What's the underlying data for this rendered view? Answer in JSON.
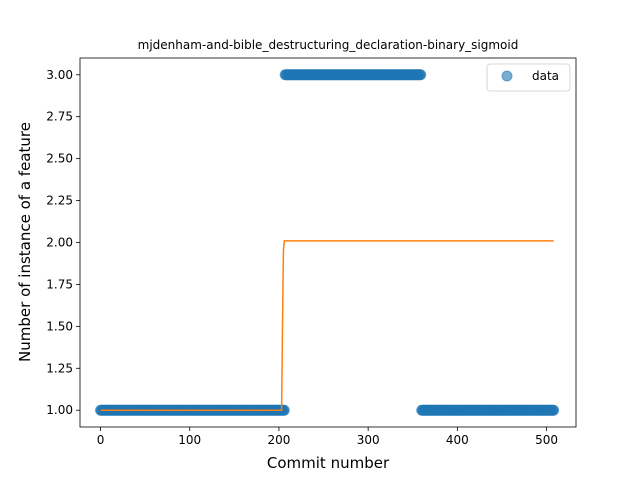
{
  "chart_data": {
    "type": "scatter",
    "title": "mjdenham-and-bible_destructuring_declaration-binary_sigmoid",
    "xlabel": "Commit number",
    "ylabel": "Number of instance of a feature",
    "xlim": [
      -23,
      533
    ],
    "ylim": [
      0.9,
      3.1
    ],
    "xticks": [
      0,
      100,
      200,
      300,
      400,
      500
    ],
    "xtick_labels": [
      "0",
      "100",
      "200",
      "300",
      "400",
      "500"
    ],
    "yticks": [
      1.0,
      1.25,
      1.5,
      1.75,
      2.0,
      2.25,
      2.5,
      2.75,
      3.0
    ],
    "ytick_labels": [
      "1.00",
      "1.25",
      "1.50",
      "1.75",
      "2.00",
      "2.25",
      "2.50",
      "2.75",
      "3.00"
    ],
    "grid": false,
    "legend": {
      "placement": "top-right",
      "entries": [
        "data"
      ]
    },
    "series": [
      {
        "name": "data",
        "kind": "scatter",
        "color": "#1f77b4",
        "segments": [
          {
            "x_start": 0,
            "x_end": 206,
            "y": 1.0
          },
          {
            "x_start": 207,
            "x_end": 359,
            "y": 3.0
          },
          {
            "x_start": 360,
            "x_end": 508,
            "y": 1.0
          }
        ]
      },
      {
        "kind": "line",
        "color": "#ff7f0e",
        "x": [
          0,
          203,
          204,
          205,
          206,
          508
        ],
        "y": [
          1.0,
          1.0,
          1.5,
          1.95,
          2.01,
          2.01
        ]
      }
    ]
  }
}
